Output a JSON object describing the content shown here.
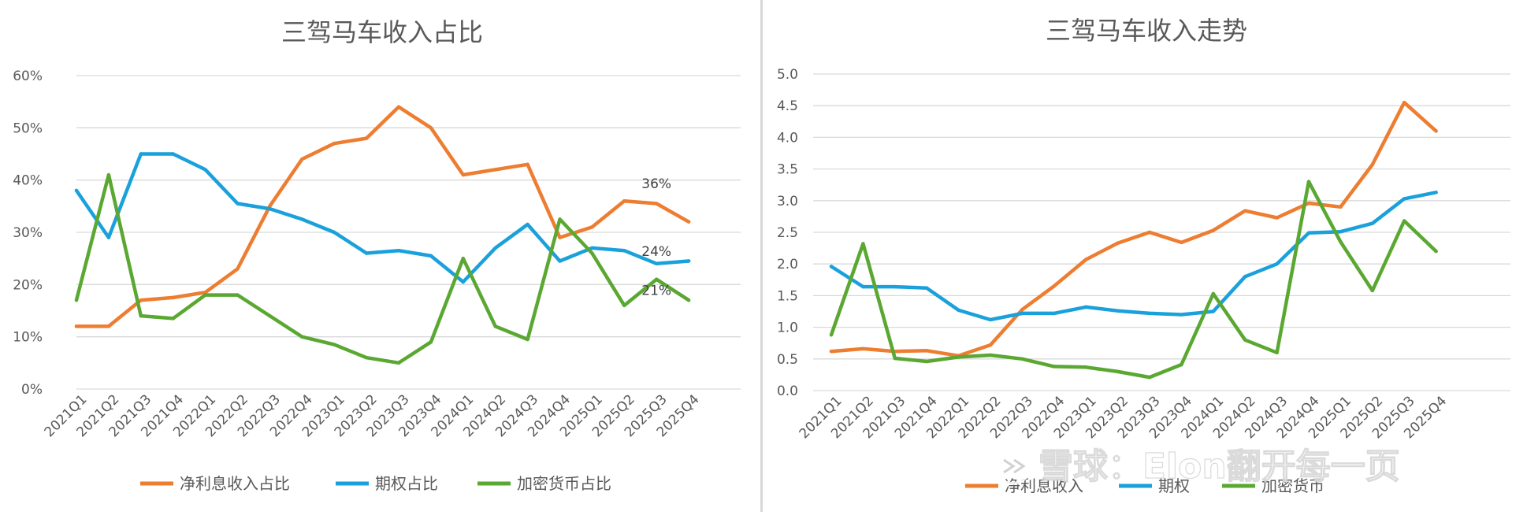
{
  "chart_data": [
    {
      "type": "line",
      "title": "三驾马车收入占比",
      "xlabel": "",
      "ylabel": "",
      "ylim": [
        0,
        60
      ],
      "ytick_labels": [
        "0%",
        "10%",
        "20%",
        "30%",
        "40%",
        "50%",
        "60%"
      ],
      "grid": true,
      "legend_position": "bottom",
      "categories": [
        "2021Q1",
        "2021Q2",
        "2021Q3",
        "2021Q4",
        "2022Q1",
        "2022Q2",
        "2022Q3",
        "2022Q4",
        "2023Q1",
        "2023Q2",
        "2023Q3",
        "2023Q4",
        "2024Q1",
        "2024Q2",
        "2024Q3",
        "2024Q4",
        "2025Q1",
        "2025Q2",
        "2025Q3",
        "2025Q4"
      ],
      "series": [
        {
          "name": "净利息收入占比",
          "color": "#ED7D31",
          "values": [
            12,
            12,
            17,
            17.5,
            18.5,
            23,
            35,
            44,
            47,
            48,
            54,
            50,
            41,
            42,
            43,
            29,
            31,
            36,
            35.5,
            32
          ]
        },
        {
          "name": "期权占比",
          "color": "#1AA1DB",
          "values": [
            38,
            29,
            45,
            45,
            42,
            35.5,
            34.5,
            32.5,
            30,
            26,
            26.5,
            25.5,
            20.5,
            27,
            31.5,
            24.5,
            27,
            26.5,
            24,
            24.5
          ]
        },
        {
          "name": "加密货币占比",
          "color": "#5AA832",
          "values": [
            17,
            41,
            14,
            13.5,
            18,
            18,
            14,
            10,
            8.5,
            6,
            5,
            9,
            25,
            12,
            9.5,
            32.5,
            26,
            16,
            21,
            17
          ]
        }
      ],
      "annotations": [
        "36%",
        "24%",
        "21%"
      ]
    },
    {
      "type": "line",
      "title": "三驾马车收入走势",
      "xlabel": "",
      "ylabel": "",
      "ylim": [
        0,
        5
      ],
      "ytick_labels": [
        "0.0",
        "0.5",
        "1.0",
        "1.5",
        "2.0",
        "2.5",
        "3.0",
        "3.5",
        "4.0",
        "4.5",
        "5.0"
      ],
      "grid": true,
      "legend_position": "bottom",
      "categories": [
        "2021Q1",
        "2021Q2",
        "2021Q3",
        "2021Q4",
        "2022Q1",
        "2022Q2",
        "2022Q3",
        "2022Q4",
        "2023Q1",
        "2023Q2",
        "2023Q3",
        "2023Q4",
        "2024Q1",
        "2024Q2",
        "2024Q3",
        "2024Q4",
        "2025Q1",
        "2025Q2",
        "2025Q3",
        "2025Q4"
      ],
      "series": [
        {
          "name": "净利息收入",
          "color": "#ED7D31",
          "values": [
            0.62,
            0.66,
            0.62,
            0.63,
            0.55,
            0.72,
            1.28,
            1.65,
            2.07,
            2.33,
            2.5,
            2.34,
            2.53,
            2.84,
            2.73,
            2.96,
            2.9,
            3.57,
            4.55,
            4.1
          ]
        },
        {
          "name": "期权",
          "color": "#1AA1DB",
          "values": [
            1.96,
            1.64,
            1.64,
            1.62,
            1.27,
            1.12,
            1.22,
            1.22,
            1.32,
            1.26,
            1.22,
            1.2,
            1.25,
            1.8,
            2.0,
            2.49,
            2.51,
            2.64,
            3.03,
            3.13
          ]
        },
        {
          "name": "加密货币",
          "color": "#5AA832",
          "values": [
            0.88,
            2.32,
            0.51,
            0.46,
            0.53,
            0.56,
            0.5,
            0.38,
            0.37,
            0.3,
            0.21,
            0.41,
            1.53,
            0.8,
            0.6,
            3.3,
            2.35,
            1.58,
            2.68,
            2.2
          ]
        }
      ]
    }
  ],
  "watermark": "雪球：Elon翻开每一页"
}
